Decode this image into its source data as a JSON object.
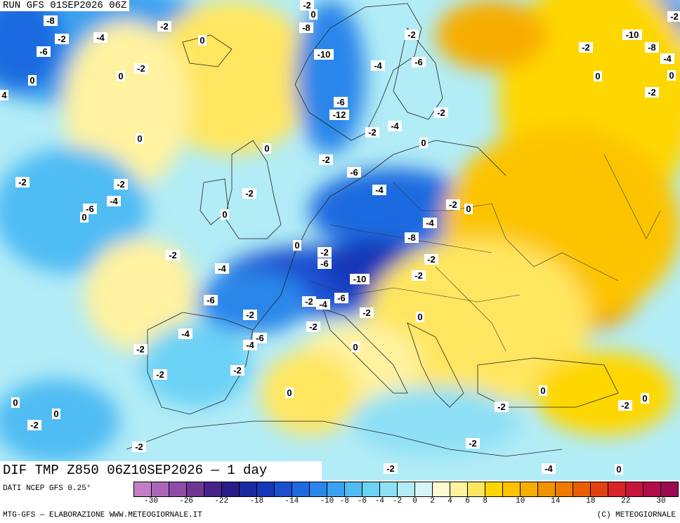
{
  "header": {
    "run_title": "RUN GFS 01SEP2026 06Z",
    "main_title": "DIF TMP Z850 06Z10SEP2026 — 1 day"
  },
  "footer": {
    "dati": "DATI NCEP GFS 0.25°",
    "credit_left": "MTG-GFS — ELABORAZIONE WWW.METEOGIORNALE.IT",
    "credit_right": "(C) METEOGIORNALE"
  },
  "legend": {
    "colors": [
      "#c27fc6",
      "#aa66b8",
      "#8f4ca7",
      "#6e3796",
      "#48228c",
      "#2a1a8a",
      "#1a2a9e",
      "#1537b8",
      "#1a4fd0",
      "#1f6ae0",
      "#2a86ea",
      "#3aa2f0",
      "#50bcf4",
      "#6cd2f6",
      "#8ee0f6",
      "#b2ecf6",
      "#d6f6f6",
      "#fffbd0",
      "#fff2a0",
      "#ffe660",
      "#ffd700",
      "#fcc400",
      "#f7ad00",
      "#f29400",
      "#ee7a00",
      "#e85e00",
      "#e24012",
      "#d8252a",
      "#c8143a",
      "#b40c4a",
      "#9c0a50"
    ],
    "tick_labels": [
      "-30",
      "-26",
      "-22",
      "-18",
      "-14",
      "-10",
      "-8",
      "-6",
      "-4",
      "-2",
      "0",
      "2",
      "4",
      "6",
      "8",
      "10",
      "14",
      "18",
      "22",
      "30"
    ]
  },
  "contour_labels": [
    "-8",
    "-2",
    "-4",
    "-6",
    "-2",
    "0",
    "-2",
    "0",
    "0",
    "4",
    "0",
    "-2",
    "-2",
    "-4",
    "-6",
    "0",
    "-2",
    "0",
    "-8",
    "-10",
    "-6",
    "-12",
    "-10",
    "-8",
    "-4",
    "-2",
    "0",
    "-2",
    "-2",
    "-6",
    "-4",
    "-2",
    "-4",
    "0",
    "-2",
    "-6",
    "0",
    "-2",
    "-2",
    "0",
    "-4",
    "-2",
    "0",
    "0",
    "-2",
    "-6",
    "-8",
    "-4",
    "-2",
    "-4",
    "-2",
    "-10",
    "-6",
    "-2",
    "-4",
    "-2",
    "-2",
    "-6",
    "-2",
    "-4",
    "-6",
    "0",
    "0",
    "-4",
    "-2",
    "-2",
    "-2",
    "0",
    "-2",
    "0",
    "-2",
    "0",
    "-2",
    "-2",
    "0",
    "-2",
    "-2",
    "0",
    "-2",
    "-4",
    "0",
    "-2",
    "0"
  ],
  "colors": {
    "sea_blue": "#3aa2f0",
    "cold_core": "#1537b8",
    "warm": "#ffd700",
    "hot": "#ee7a00"
  }
}
